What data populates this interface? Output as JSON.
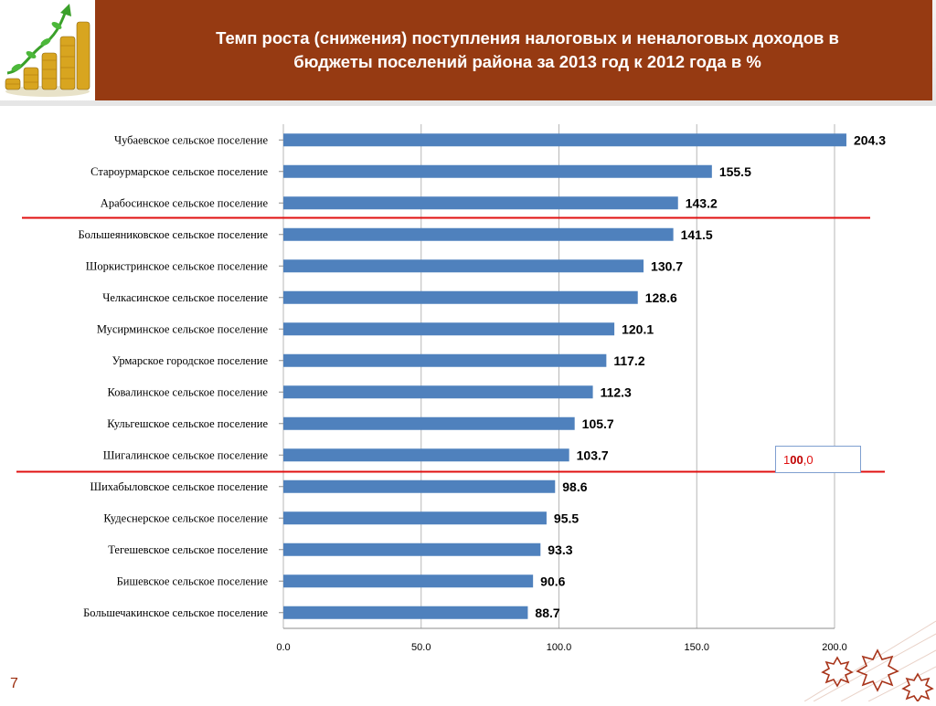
{
  "header": {
    "title": "Темп роста (снижения) поступления  налоговых и неналоговых доходов в\nбюджеты поселений района за  2013 год  к  2012 года в %"
  },
  "reference_box": {
    "part1": "1",
    "part2": "00",
    "part3": ",0",
    "threshold": 100
  },
  "page_number": "7",
  "colors": {
    "bar": "#4f81bd",
    "banner": "#963a12",
    "ref_line": "#e01010",
    "grid": "#b7b7b7"
  },
  "icons": {
    "logo": "coins-growth-logo-icon",
    "decor": "stars-decoration-icon"
  },
  "chart_data": {
    "type": "bar",
    "orientation": "horizontal",
    "categories": [
      "Чубаевское  сельское поселение",
      "Староурмарское  сельское поселение",
      "Арабосинское сельское поселение",
      "Большеяниковское  сельское поселение",
      "Шоркистринское  сельское поселение",
      "Челкасинское  сельское поселение",
      "Мусирминское  сельское поселение",
      "Урмарское  городское поселение",
      "Ковалинское  сельское поселение",
      "Кульгешское  сельское поселение",
      "Шигалинское  сельское поселение",
      "Шихабыловское  сельское поселение",
      "Кудеснерское  сельское поселение",
      "Тегешевское  сельское поселение",
      "Бишевское  сельское поселение",
      "Большечакинское  сельское поселение"
    ],
    "values": [
      204.3,
      155.5,
      143.2,
      141.5,
      130.7,
      128.6,
      120.1,
      117.2,
      112.3,
      105.7,
      103.7,
      98.6,
      95.5,
      93.3,
      90.6,
      88.7
    ],
    "value_labels": [
      "204.3",
      "155.5",
      "143.2",
      "141.5",
      "130.7",
      "128.6",
      "120.1",
      "117.2",
      "112.3",
      "105.7",
      "103.7",
      "98.6",
      "95.5",
      "93.3",
      "90.6",
      "88.7"
    ],
    "x_ticks": [
      "0.0",
      "50.0",
      "100.0",
      "150.0",
      "200.0"
    ],
    "xlim": [
      0,
      200
    ],
    "grid": "vertical",
    "separator_lines_after": [
      "Арабосинское сельское поселение",
      "Шигалинское  сельское поселение"
    ]
  }
}
